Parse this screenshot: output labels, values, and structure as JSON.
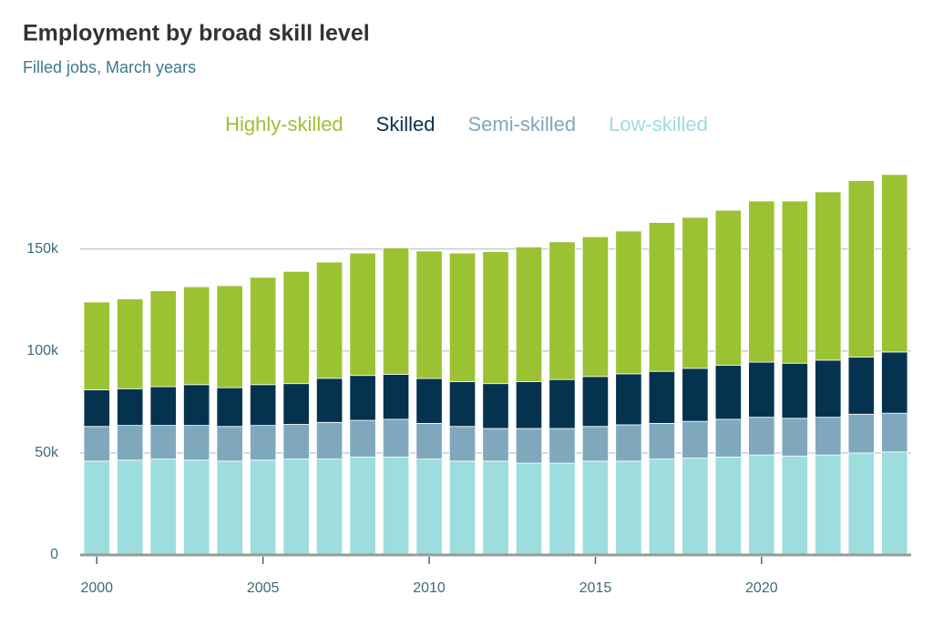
{
  "chart_data": {
    "type": "stacked-bar",
    "title": "Employment by broad skill level",
    "subtitle": "Filled jobs, March years",
    "x": [
      2000,
      2001,
      2002,
      2003,
      2004,
      2005,
      2006,
      2007,
      2008,
      2009,
      2010,
      2011,
      2012,
      2013,
      2014,
      2015,
      2016,
      2017,
      2018,
      2019,
      2020,
      2021,
      2022,
      2023,
      2024
    ],
    "xlim": [
      1999.5,
      2024.5
    ],
    "xticks": [
      2000,
      2005,
      2010,
      2015,
      2020
    ],
    "ylim": [
      0,
      190
    ],
    "yticks": [
      0,
      {
        "value": 50,
        "label": "50k"
      },
      {
        "value": 100,
        "label": "100k"
      },
      {
        "value": 150,
        "label": "150k"
      }
    ],
    "grid": true,
    "series": [
      {
        "name": "Highly-skilled",
        "color": "#9bc232",
        "values": [
          43,
          44,
          47,
          48,
          50,
          52.6,
          55,
          57,
          60,
          62,
          62.5,
          63,
          64.7,
          66,
          67.5,
          68.5,
          70,
          73,
          74,
          76,
          79,
          79.5,
          82.5,
          86.5,
          87
        ]
      },
      {
        "name": "Skilled",
        "color": "#04324f",
        "values": [
          18,
          18,
          19,
          20,
          19,
          20,
          20,
          21.6,
          22,
          22,
          22,
          22,
          22,
          23,
          24,
          24.5,
          25,
          25.5,
          26,
          26.5,
          27,
          27,
          28,
          28,
          30
        ]
      },
      {
        "name": "Semi-skilled",
        "color": "#7fa8bc",
        "values": [
          17,
          17,
          16.5,
          17,
          17,
          17,
          17,
          18,
          18,
          18.5,
          17.5,
          17,
          16,
          17,
          17,
          17,
          17.8,
          17.5,
          18,
          18.5,
          18.5,
          18.5,
          18.5,
          19,
          19
        ]
      },
      {
        "name": "Low-skilled",
        "color": "#9ddddd",
        "values": [
          46,
          46.5,
          47,
          46.5,
          46,
          46.5,
          47,
          47,
          48,
          48,
          47,
          46,
          46,
          45,
          45,
          46,
          46,
          47,
          47.5,
          48,
          49,
          48.5,
          49,
          50,
          50.5
        ]
      }
    ]
  }
}
